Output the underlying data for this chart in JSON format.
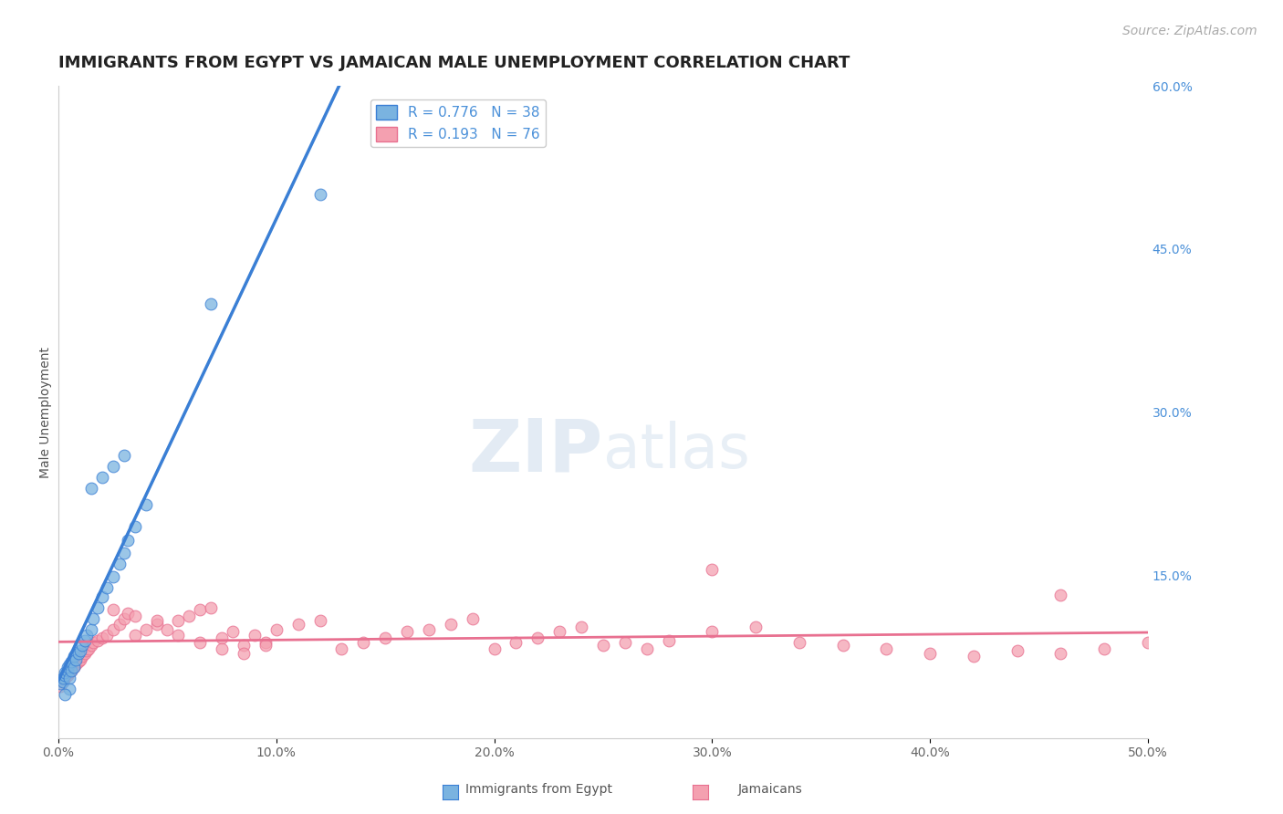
{
  "title": "IMMIGRANTS FROM EGYPT VS JAMAICAN MALE UNEMPLOYMENT CORRELATION CHART",
  "source_text": "Source: ZipAtlas.com",
  "ylabel": "Male Unemployment",
  "xlim": [
    0.0,
    0.5
  ],
  "ylim": [
    0.0,
    0.6
  ],
  "xtick_vals": [
    0.0,
    0.1,
    0.2,
    0.3,
    0.4,
    0.5
  ],
  "xticklabels": [
    "0.0%",
    "10.0%",
    "20.0%",
    "30.0%",
    "40.0%",
    "50.0%"
  ],
  "yticks_right": [
    0.15,
    0.3,
    0.45,
    0.6
  ],
  "yticklabels_right": [
    "15.0%",
    "30.0%",
    "45.0%",
    "60.0%"
  ],
  "color_egypt": "#7ab3e0",
  "color_jamaica": "#f4a0b0",
  "color_egypt_line": "#3a7fd5",
  "color_jamaica_line": "#e87090",
  "R_egypt": 0.776,
  "N_egypt": 38,
  "R_jamaica": 0.193,
  "N_jamaica": 76,
  "legend_label_egypt": "Immigrants from Egypt",
  "legend_label_jamaica": "Jamaicans",
  "watermark_zip": "ZIP",
  "watermark_atlas": "atlas",
  "background_color": "#ffffff",
  "grid_color": "#c8d8e8",
  "title_fontsize": 13,
  "axis_label_fontsize": 10,
  "tick_fontsize": 10,
  "legend_fontsize": 11,
  "source_fontsize": 10
}
